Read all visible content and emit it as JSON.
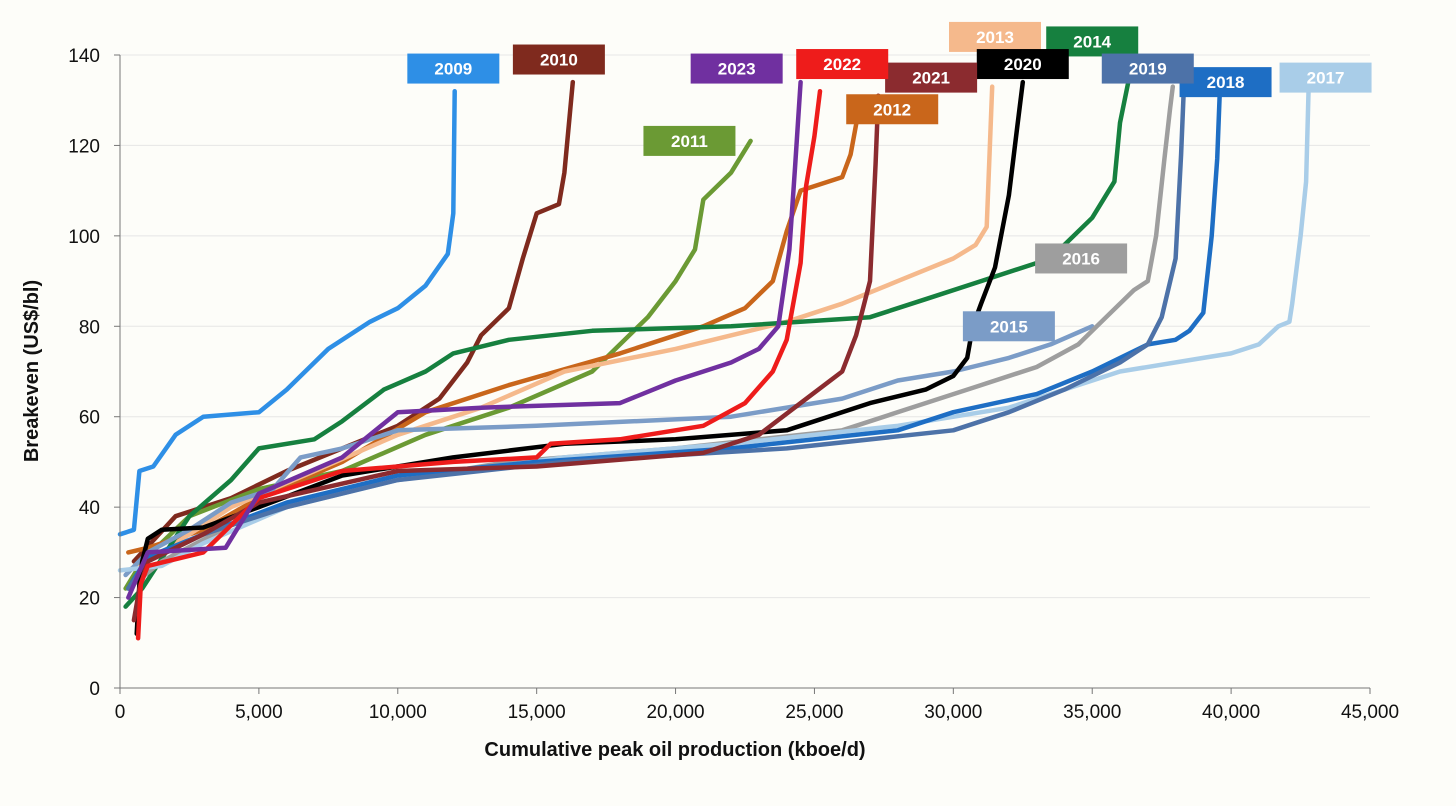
{
  "chart_data": {
    "type": "line",
    "xlabel": "Cumulative peak oil production (kboe/d)",
    "ylabel": "Breakeven (US$/bl)",
    "xlim": [
      0,
      45000
    ],
    "ylim": [
      0,
      140
    ],
    "xticks": [
      0,
      5000,
      10000,
      15000,
      20000,
      25000,
      30000,
      35000,
      40000,
      45000
    ],
    "xtick_labels": [
      "0",
      "5,000",
      "10,000",
      "15,000",
      "20,000",
      "25,000",
      "30,000",
      "35,000",
      "40,000",
      "45,000"
    ],
    "yticks": [
      0,
      20,
      40,
      60,
      80,
      100,
      120,
      140
    ],
    "ytick_labels": [
      "0",
      "20",
      "40",
      "60",
      "80",
      "100",
      "120",
      "140"
    ],
    "grid": "horizontal",
    "legend": "inline labels",
    "series": [
      {
        "name": "2009",
        "color": "#2e8fe6",
        "label_at": [
          12000,
          137
        ],
        "points": [
          [
            0,
            34
          ],
          [
            500,
            35
          ],
          [
            700,
            48
          ],
          [
            1200,
            49
          ],
          [
            2000,
            56
          ],
          [
            3000,
            60
          ],
          [
            5000,
            61
          ],
          [
            6000,
            66
          ],
          [
            7500,
            75
          ],
          [
            9000,
            81
          ],
          [
            10000,
            84
          ],
          [
            11000,
            89
          ],
          [
            11800,
            96
          ],
          [
            12000,
            105
          ],
          [
            12050,
            132
          ]
        ]
      },
      {
        "name": "2010",
        "color": "#7f2a1e",
        "label_at": [
          15800,
          139
        ],
        "points": [
          [
            500,
            28
          ],
          [
            800,
            30
          ],
          [
            2000,
            38
          ],
          [
            4000,
            42
          ],
          [
            6000,
            48
          ],
          [
            8000,
            53
          ],
          [
            10000,
            58
          ],
          [
            11500,
            64
          ],
          [
            12500,
            72
          ],
          [
            13000,
            78
          ],
          [
            14000,
            84
          ],
          [
            14500,
            95
          ],
          [
            15000,
            105
          ],
          [
            15800,
            107
          ],
          [
            16000,
            114
          ],
          [
            16300,
            134
          ]
        ]
      },
      {
        "name": "2011",
        "color": "#6b9a34",
        "label_at": [
          20500,
          121
        ],
        "points": [
          [
            200,
            22
          ],
          [
            800,
            28
          ],
          [
            2500,
            38
          ],
          [
            5000,
            44
          ],
          [
            8000,
            48
          ],
          [
            11000,
            56
          ],
          [
            14000,
            62
          ],
          [
            17000,
            70
          ],
          [
            19000,
            82
          ],
          [
            20000,
            90
          ],
          [
            20700,
            97
          ],
          [
            21000,
            108
          ],
          [
            22000,
            114
          ],
          [
            22700,
            121
          ]
        ]
      },
      {
        "name": "2012",
        "color": "#c9661b",
        "label_at": [
          27800,
          128
        ],
        "points": [
          [
            300,
            30
          ],
          [
            1000,
            31
          ],
          [
            3000,
            35
          ],
          [
            5000,
            42
          ],
          [
            8000,
            50
          ],
          [
            11000,
            61
          ],
          [
            14000,
            67
          ],
          [
            18000,
            74
          ],
          [
            21000,
            80
          ],
          [
            22500,
            84
          ],
          [
            23500,
            90
          ],
          [
            24000,
            101
          ],
          [
            24500,
            110
          ],
          [
            26000,
            113
          ],
          [
            26300,
            118
          ],
          [
            26600,
            128
          ]
        ]
      },
      {
        "name": "2013",
        "color": "#f5b98c",
        "label_at": [
          31500,
          144
        ],
        "points": [
          [
            300,
            26
          ],
          [
            1500,
            30
          ],
          [
            4000,
            40
          ],
          [
            7000,
            48
          ],
          [
            10000,
            56
          ],
          [
            13000,
            62
          ],
          [
            16000,
            70
          ],
          [
            20000,
            75
          ],
          [
            24000,
            81
          ],
          [
            26000,
            85
          ],
          [
            28000,
            90
          ],
          [
            30000,
            95
          ],
          [
            30800,
            98
          ],
          [
            31200,
            102
          ],
          [
            31400,
            133
          ]
        ]
      },
      {
        "name": "2014",
        "color": "#16803f",
        "label_at": [
          35000,
          143
        ],
        "points": [
          [
            200,
            18
          ],
          [
            800,
            22
          ],
          [
            2500,
            38
          ],
          [
            4000,
            46
          ],
          [
            5000,
            53
          ],
          [
            7000,
            55
          ],
          [
            8000,
            59
          ],
          [
            9500,
            66
          ],
          [
            11000,
            70
          ],
          [
            12000,
            74
          ],
          [
            14000,
            77
          ],
          [
            17000,
            79
          ],
          [
            22000,
            80
          ],
          [
            27000,
            82
          ],
          [
            29000,
            86
          ],
          [
            31000,
            90
          ],
          [
            33000,
            94
          ],
          [
            34000,
            98
          ],
          [
            35000,
            104
          ],
          [
            35800,
            112
          ],
          [
            36000,
            125
          ],
          [
            36300,
            134
          ]
        ]
      },
      {
        "name": "2015",
        "color": "#7b9cc7",
        "label_at": [
          32000,
          80
        ],
        "points": [
          [
            200,
            25
          ],
          [
            1000,
            30
          ],
          [
            2500,
            35
          ],
          [
            4000,
            41
          ],
          [
            5500,
            44
          ],
          [
            6500,
            51
          ],
          [
            8000,
            53
          ],
          [
            10000,
            57
          ],
          [
            15000,
            58
          ],
          [
            22000,
            60
          ],
          [
            26000,
            64
          ],
          [
            28000,
            68
          ],
          [
            30000,
            70
          ],
          [
            32000,
            73
          ],
          [
            33500,
            76
          ],
          [
            35000,
            80
          ]
        ]
      },
      {
        "name": "2016",
        "color": "#9e9e9e",
        "label_at": [
          34600,
          95
        ],
        "points": [
          [
            300,
            22
          ],
          [
            1500,
            28
          ],
          [
            4000,
            36
          ],
          [
            8000,
            44
          ],
          [
            14000,
            50
          ],
          [
            20000,
            53
          ],
          [
            26000,
            57
          ],
          [
            29000,
            63
          ],
          [
            31000,
            67
          ],
          [
            33000,
            71
          ],
          [
            34500,
            76
          ],
          [
            35500,
            82
          ],
          [
            36500,
            88
          ],
          [
            37000,
            90
          ],
          [
            37300,
            100
          ],
          [
            37600,
            117
          ],
          [
            37800,
            128
          ],
          [
            37900,
            133
          ]
        ]
      },
      {
        "name": "2017",
        "color": "#a9cde8",
        "label_at": [
          43400,
          135
        ],
        "points": [
          [
            0,
            26
          ],
          [
            1500,
            27
          ],
          [
            3000,
            32
          ],
          [
            6000,
            40
          ],
          [
            10000,
            46
          ],
          [
            16000,
            51
          ],
          [
            22000,
            54
          ],
          [
            28000,
            58
          ],
          [
            32000,
            62
          ],
          [
            36000,
            70
          ],
          [
            39000,
            73
          ],
          [
            40000,
            74
          ],
          [
            41000,
            76
          ],
          [
            41700,
            80
          ],
          [
            42100,
            81
          ],
          [
            42200,
            85
          ],
          [
            42500,
            100
          ],
          [
            42700,
            112
          ],
          [
            42800,
            135
          ]
        ]
      },
      {
        "name": "2018",
        "color": "#1e6ec4",
        "label_at": [
          39800,
          134
        ],
        "points": [
          [
            300,
            22
          ],
          [
            1000,
            29
          ],
          [
            3000,
            34
          ],
          [
            6000,
            41
          ],
          [
            10000,
            47
          ],
          [
            15000,
            50
          ],
          [
            22000,
            53
          ],
          [
            28000,
            57
          ],
          [
            30000,
            61
          ],
          [
            33000,
            65
          ],
          [
            35000,
            70
          ],
          [
            37000,
            76
          ],
          [
            38000,
            77
          ],
          [
            38500,
            79
          ],
          [
            39000,
            83
          ],
          [
            39300,
            100
          ],
          [
            39500,
            117
          ],
          [
            39600,
            133
          ]
        ]
      },
      {
        "name": "2019",
        "color": "#4d72a8",
        "label_at": [
          37000,
          137
        ],
        "points": [
          [
            300,
            22
          ],
          [
            1000,
            28
          ],
          [
            3000,
            34
          ],
          [
            6000,
            40
          ],
          [
            10000,
            46
          ],
          [
            16000,
            50
          ],
          [
            24000,
            53
          ],
          [
            30000,
            57
          ],
          [
            32000,
            61
          ],
          [
            34000,
            66
          ],
          [
            36000,
            72
          ],
          [
            37000,
            76
          ],
          [
            37500,
            82
          ],
          [
            38000,
            95
          ],
          [
            38200,
            118
          ],
          [
            38300,
            133
          ]
        ]
      },
      {
        "name": "2020",
        "color": "#000000",
        "label_at": [
          32500,
          138
        ],
        "points": [
          [
            600,
            12
          ],
          [
            700,
            23
          ],
          [
            800,
            28
          ],
          [
            1000,
            33
          ],
          [
            1500,
            35
          ],
          [
            3000,
            35.5
          ],
          [
            5000,
            40
          ],
          [
            8000,
            47
          ],
          [
            12000,
            51
          ],
          [
            16000,
            54
          ],
          [
            20000,
            55
          ],
          [
            24000,
            57
          ],
          [
            27000,
            63
          ],
          [
            29000,
            66
          ],
          [
            30000,
            69
          ],
          [
            30500,
            73
          ],
          [
            30700,
            80
          ],
          [
            31000,
            85
          ],
          [
            31500,
            93
          ],
          [
            32000,
            109
          ],
          [
            32300,
            124
          ],
          [
            32500,
            134
          ]
        ]
      },
      {
        "name": "2021",
        "color": "#8b2b2f",
        "label_at": [
          29200,
          135
        ],
        "points": [
          [
            500,
            15
          ],
          [
            700,
            22
          ],
          [
            1000,
            28
          ],
          [
            3000,
            34
          ],
          [
            5000,
            41
          ],
          [
            10000,
            48
          ],
          [
            15000,
            49
          ],
          [
            21000,
            52
          ],
          [
            23000,
            56
          ],
          [
            24500,
            63
          ],
          [
            26000,
            70
          ],
          [
            26500,
            78
          ],
          [
            27000,
            90
          ],
          [
            27200,
            116
          ],
          [
            27300,
            131
          ]
        ]
      },
      {
        "name": "2022",
        "color": "#ee1c1b",
        "label_at": [
          26000,
          138
        ],
        "points": [
          [
            650,
            11
          ],
          [
            750,
            23
          ],
          [
            1000,
            27
          ],
          [
            3000,
            30
          ],
          [
            4000,
            36
          ],
          [
            5000,
            42
          ],
          [
            8000,
            48
          ],
          [
            12000,
            50
          ],
          [
            15000,
            51
          ],
          [
            15500,
            54
          ],
          [
            18000,
            55
          ],
          [
            21000,
            58
          ],
          [
            22500,
            63
          ],
          [
            23500,
            70
          ],
          [
            24000,
            77
          ],
          [
            24500,
            94
          ],
          [
            24700,
            111
          ],
          [
            25000,
            122
          ],
          [
            25200,
            132
          ]
        ]
      },
      {
        "name": "2023",
        "color": "#7030a0",
        "label_at": [
          22200,
          137
        ],
        "points": [
          [
            300,
            20
          ],
          [
            1000,
            30
          ],
          [
            3800,
            31
          ],
          [
            5000,
            43
          ],
          [
            8000,
            51
          ],
          [
            10000,
            61
          ],
          [
            13000,
            62
          ],
          [
            18000,
            63
          ],
          [
            20000,
            68
          ],
          [
            22000,
            72
          ],
          [
            23000,
            75
          ],
          [
            23700,
            80
          ],
          [
            24100,
            97
          ],
          [
            24300,
            115
          ],
          [
            24500,
            134
          ]
        ]
      }
    ]
  }
}
